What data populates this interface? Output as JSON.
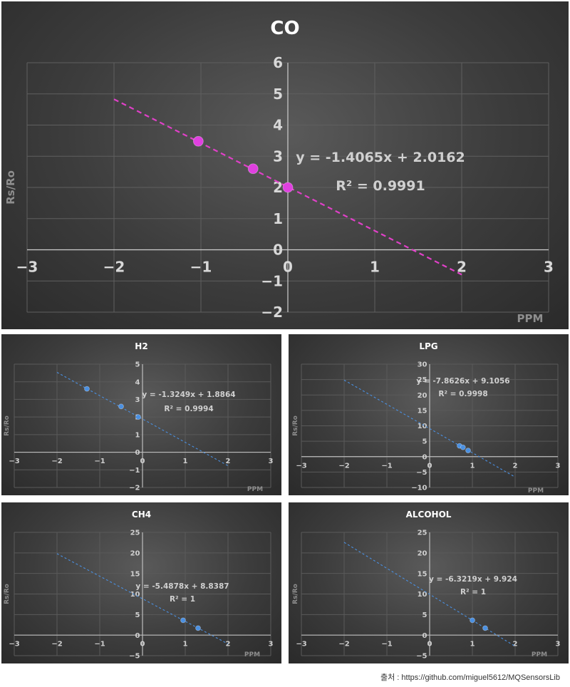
{
  "chart_data": [
    {
      "type": "scatter",
      "title": "CO",
      "xlabel": "PPM",
      "ylabel": "Rs/Ro",
      "xlim": [
        -3,
        3
      ],
      "ylim": [
        -2,
        6
      ],
      "xticks": [
        "-3",
        "-2",
        "-1",
        "0",
        "1",
        "2",
        "3"
      ],
      "yticks": [
        "-2",
        "-1",
        "0",
        "1",
        "2",
        "3",
        "4",
        "5",
        "6"
      ],
      "points": [
        [
          -1.03,
          3.48
        ],
        [
          -0.4,
          2.6
        ],
        [
          0.0,
          2.0
        ]
      ],
      "trendline": {
        "slope": -1.4065,
        "intercept": 2.0162,
        "x_range": [
          -2,
          2
        ]
      },
      "equation": "y = -1.4065x + 2.0162",
      "r2": "R² = 0.9991",
      "point_color": "#e040e0",
      "line_color": "#e040c8",
      "grid": true
    },
    {
      "type": "scatter",
      "title": "H2",
      "xlabel": "PPM",
      "ylabel": "Rs/Ro",
      "xlim": [
        -3,
        3
      ],
      "ylim": [
        -2,
        5
      ],
      "xticks": [
        "-3",
        "-2",
        "-1",
        "0",
        "1",
        "2",
        "3"
      ],
      "yticks": [
        "-2",
        "-1",
        "0",
        "1",
        "2",
        "3",
        "4",
        "5"
      ],
      "points": [
        [
          -1.3,
          3.6
        ],
        [
          -0.5,
          2.6
        ],
        [
          -0.1,
          2.0
        ]
      ],
      "trendline": {
        "slope": -1.3249,
        "intercept": 1.8864,
        "x_range": [
          -2,
          2
        ]
      },
      "equation": "y = -1.3249x + 1.8864",
      "r2": "R² = 0.9994",
      "point_color": "#4a90e2",
      "line_color": "#4a90e2",
      "grid": true
    },
    {
      "type": "scatter",
      "title": "LPG",
      "xlabel": "PPM",
      "ylabel": "Rs/Ro",
      "xlim": [
        -3,
        3
      ],
      "ylim": [
        -10,
        30
      ],
      "xticks": [
        "-3",
        "-2",
        "-1",
        "0",
        "1",
        "2",
        "3"
      ],
      "yticks": [
        "-10",
        "-5",
        "0",
        "5",
        "10",
        "15",
        "20",
        "25",
        "30"
      ],
      "points": [
        [
          0.7,
          3.5
        ],
        [
          0.78,
          3.0
        ],
        [
          0.9,
          2.0
        ]
      ],
      "trendline": {
        "slope": -7.8626,
        "intercept": 9.1056,
        "x_range": [
          -2,
          2
        ]
      },
      "equation": "y = -7.8626x + 9.1056",
      "r2": "R² = 0.9998",
      "point_color": "#4a90e2",
      "line_color": "#4a90e2",
      "grid": true
    },
    {
      "type": "scatter",
      "title": "CH4",
      "xlabel": "PPM",
      "ylabel": "Rs/Ro",
      "xlim": [
        -3,
        3
      ],
      "ylim": [
        -5,
        25
      ],
      "xticks": [
        "-3",
        "-2",
        "-1",
        "0",
        "1",
        "2",
        "3"
      ],
      "yticks": [
        "-5",
        "0",
        "5",
        "10",
        "15",
        "20",
        "25"
      ],
      "points": [
        [
          0.95,
          3.6
        ],
        [
          1.3,
          1.7
        ]
      ],
      "trendline": {
        "slope": -5.4878,
        "intercept": 8.8387,
        "x_range": [
          -2,
          2
        ]
      },
      "equation": "y = -5.4878x + 8.8387",
      "r2": "R² = 1",
      "point_color": "#4a90e2",
      "line_color": "#4a90e2",
      "grid": true
    },
    {
      "type": "scatter",
      "title": "ALCOHOL",
      "xlabel": "PPM",
      "ylabel": "Rs/Ro",
      "xlim": [
        -3,
        3
      ],
      "ylim": [
        -5,
        25
      ],
      "xticks": [
        "-3",
        "-2",
        "-1",
        "0",
        "1",
        "2",
        "3"
      ],
      "yticks": [
        "-5",
        "0",
        "5",
        "10",
        "15",
        "20",
        "25"
      ],
      "points": [
        [
          1.0,
          3.6
        ],
        [
          1.3,
          1.7
        ]
      ],
      "trendline": {
        "slope": -6.3219,
        "intercept": 9.924,
        "x_range": [
          -2,
          2
        ]
      },
      "equation": "y = -6.3219x + 9.924",
      "r2": "R² = 1",
      "point_color": "#4a90e2",
      "line_color": "#4a90e2",
      "grid": true
    }
  ],
  "credit": "출처 : https://github.com/miguel5612/MQSensorsLib"
}
